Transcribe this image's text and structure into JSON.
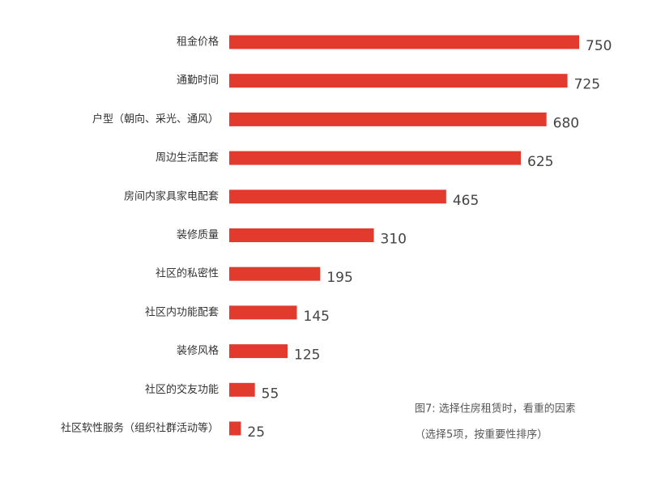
{
  "chart_data": {
    "type": "bar",
    "categories": [
      "租金价格",
      "通勤时间",
      "户型（朝向、采光、通风）",
      "周边生活配套",
      "房间内家具家电配套",
      "装修质量",
      "社区的私密性",
      "社区内功能配套",
      "装修风格",
      "社区的交友功能",
      "社区软性服务（组织社群活动等）"
    ],
    "values": [
      750,
      725,
      680,
      625,
      465,
      310,
      195,
      145,
      125,
      55,
      25
    ],
    "color": "#e23b2e",
    "caption": [
      "图7: 选择住房租赁时，看重的因素",
      "（选择5项，按重要性排序）"
    ]
  }
}
